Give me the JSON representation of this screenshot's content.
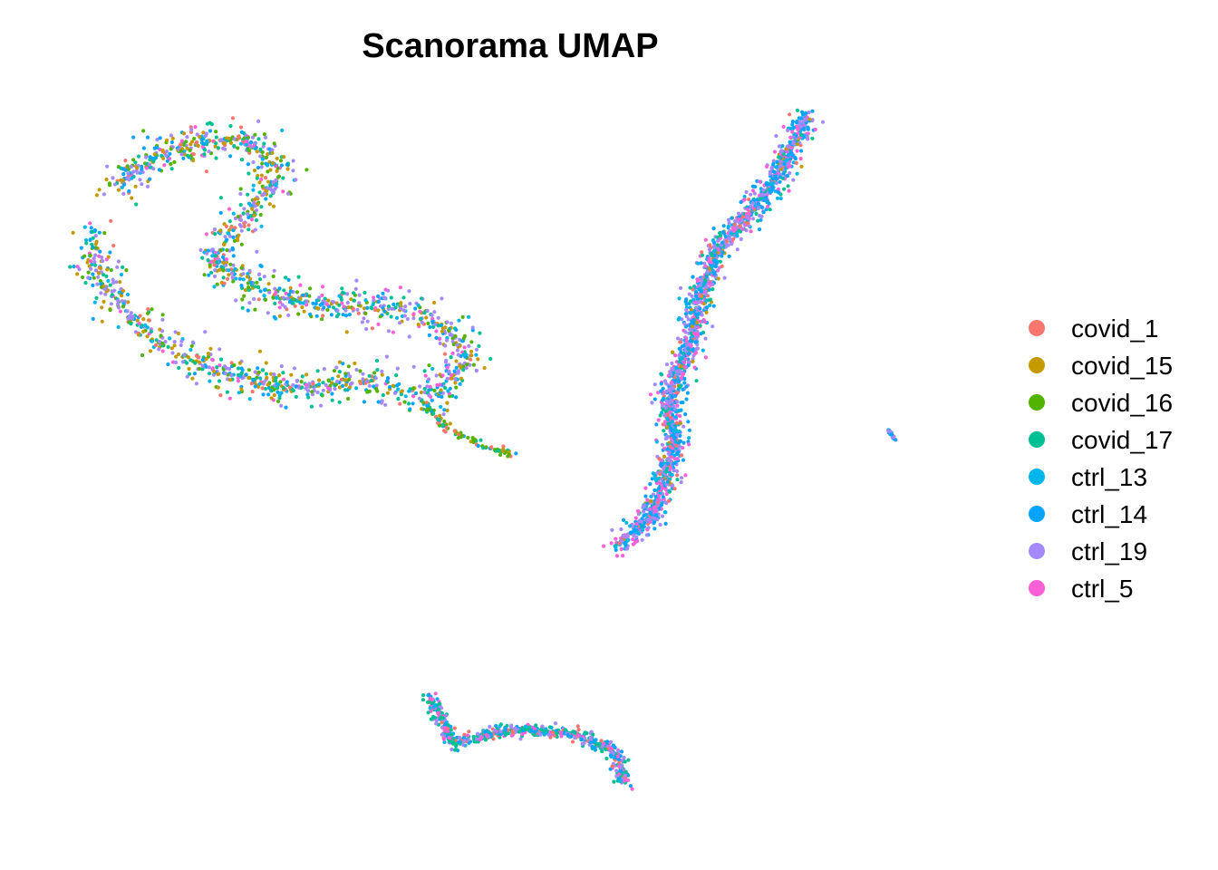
{
  "chart_data": {
    "type": "scatter",
    "title": "Scanorama UMAP",
    "xlabel": "",
    "ylabel": "",
    "axes_visible": false,
    "grid": false,
    "legend_position": "right",
    "xlim": [
      -10,
      12
    ],
    "ylim": [
      -10,
      10
    ],
    "series": [
      {
        "name": "covid_1",
        "color": "#F8766D"
      },
      {
        "name": "covid_15",
        "color": "#C49A00"
      },
      {
        "name": "covid_16",
        "color": "#53B400"
      },
      {
        "name": "covid_17",
        "color": "#00C094"
      },
      {
        "name": "ctrl_13",
        "color": "#00B6EB"
      },
      {
        "name": "ctrl_14",
        "color": "#06A4FF"
      },
      {
        "name": "ctrl_19",
        "color": "#A58AFF"
      },
      {
        "name": "ctrl_5",
        "color": "#FB61D7"
      }
    ],
    "clusters": [
      {
        "label": "left cluster",
        "path": [
          [
            -9.0,
            7.8
          ],
          [
            -7.5,
            8.9
          ],
          [
            -5.8,
            9.2
          ],
          [
            -4.8,
            8.2
          ],
          [
            -6.0,
            6.6
          ],
          [
            -6.5,
            5.6
          ],
          [
            -5.0,
            4.6
          ],
          [
            -3.6,
            4.4
          ],
          [
            -2.0,
            4.3
          ],
          [
            -0.8,
            3.8
          ],
          [
            -0.2,
            2.8
          ],
          [
            -1.0,
            1.8
          ],
          [
            -2.5,
            2.2
          ],
          [
            -4.5,
            2.0
          ],
          [
            -6.5,
            2.5
          ],
          [
            -8.0,
            3.4
          ],
          [
            -9.3,
            5.0
          ],
          [
            -9.5,
            6.5
          ]
        ],
        "width": 1.7,
        "count": 1700,
        "mix": [
          {
            "series": "covid_15",
            "weight": 0.16
          },
          {
            "series": "covid_16",
            "weight": 0.12
          },
          {
            "series": "covid_17",
            "weight": 0.16
          },
          {
            "series": "ctrl_19",
            "weight": 0.24
          },
          {
            "series": "ctrl_14",
            "weight": 0.14
          },
          {
            "series": "ctrl_13",
            "weight": 0.08
          },
          {
            "series": "covid_1",
            "weight": 0.05
          },
          {
            "series": "ctrl_5",
            "weight": 0.05
          }
        ]
      },
      {
        "label": "left tail",
        "path": [
          [
            -1.3,
            1.6
          ],
          [
            -0.8,
            0.9
          ],
          [
            0.2,
            0.3
          ],
          [
            1.0,
            0.1
          ]
        ],
        "width": 0.35,
        "count": 90,
        "mix": [
          {
            "series": "covid_16",
            "weight": 0.35
          },
          {
            "series": "covid_15",
            "weight": 0.2
          },
          {
            "series": "covid_17",
            "weight": 0.15
          },
          {
            "series": "covid_1",
            "weight": 0.15
          },
          {
            "series": "ctrl_14",
            "weight": 0.15
          }
        ]
      },
      {
        "label": "right cluster",
        "path": [
          [
            8.2,
            9.8
          ],
          [
            7.6,
            8.4
          ],
          [
            7.0,
            7.3
          ],
          [
            6.0,
            6.0
          ],
          [
            5.5,
            4.6
          ],
          [
            5.3,
            3.2
          ],
          [
            4.8,
            1.8
          ],
          [
            4.9,
            0.4
          ],
          [
            4.4,
            -1.6
          ],
          [
            3.5,
            -2.5
          ]
        ],
        "width": 1.0,
        "count": 1800,
        "mix": [
          {
            "series": "ctrl_19",
            "weight": 0.3
          },
          {
            "series": "ctrl_14",
            "weight": 0.22
          },
          {
            "series": "ctrl_13",
            "weight": 0.12
          },
          {
            "series": "ctrl_5",
            "weight": 0.18
          },
          {
            "series": "covid_17",
            "weight": 0.08
          },
          {
            "series": "covid_1",
            "weight": 0.05
          },
          {
            "series": "covid_15",
            "weight": 0.05
          }
        ]
      },
      {
        "label": "small outlier cluster",
        "path": [
          [
            10.2,
            0.8
          ],
          [
            10.4,
            0.5
          ]
        ],
        "width": 0.12,
        "count": 25,
        "mix": [
          {
            "series": "ctrl_14",
            "weight": 0.7
          },
          {
            "series": "ctrl_19",
            "weight": 0.3
          }
        ]
      },
      {
        "label": "bottom cluster",
        "path": [
          [
            -1.2,
            -6.8
          ],
          [
            -0.8,
            -7.6
          ],
          [
            -0.6,
            -8.2
          ],
          [
            0.8,
            -7.8
          ],
          [
            2.4,
            -7.9
          ],
          [
            3.4,
            -8.4
          ],
          [
            3.7,
            -9.3
          ]
        ],
        "width": 0.55,
        "count": 650,
        "mix": [
          {
            "series": "covid_17",
            "weight": 0.3
          },
          {
            "series": "ctrl_14",
            "weight": 0.2
          },
          {
            "series": "ctrl_19",
            "weight": 0.2
          },
          {
            "series": "ctrl_5",
            "weight": 0.15
          },
          {
            "series": "covid_1",
            "weight": 0.1
          },
          {
            "series": "ctrl_13",
            "weight": 0.05
          }
        ]
      }
    ]
  }
}
